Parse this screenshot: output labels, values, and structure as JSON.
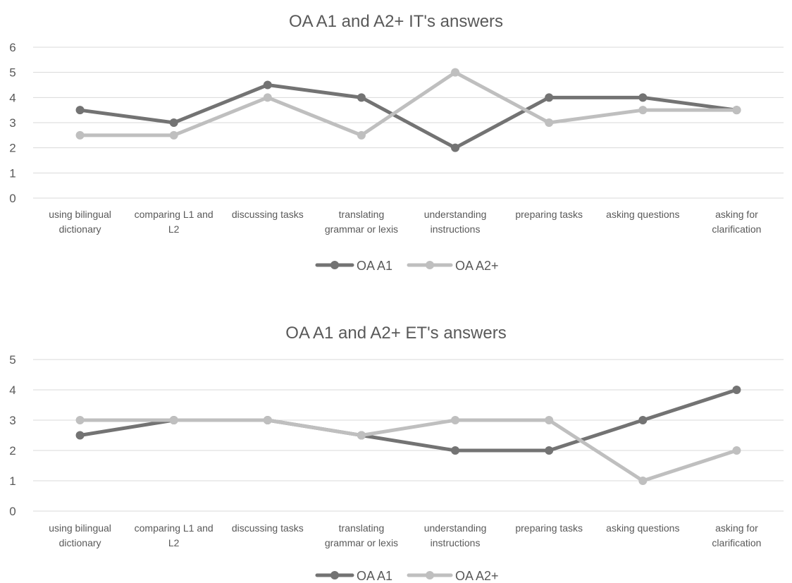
{
  "charts": [
    {
      "title": "OA A1 and A2+ IT's answers",
      "legend": [
        "OA A1",
        "OA A2+"
      ]
    },
    {
      "title": "OA A1 and A2+ ET's answers",
      "legend": [
        "OA A1",
        "OA A2+"
      ]
    }
  ],
  "chart_data": [
    {
      "type": "line",
      "title": "OA A1 and A2+ IT's answers",
      "categories": [
        [
          "using bilingual",
          "dictionary"
        ],
        [
          "comparing L1 and",
          "L2"
        ],
        [
          "discussing tasks"
        ],
        [
          "translating",
          "grammar or lexis"
        ],
        [
          "understanding",
          "instructions"
        ],
        [
          "preparing tasks"
        ],
        [
          "asking questions"
        ],
        [
          "asking for",
          "clarification"
        ]
      ],
      "series": [
        {
          "name": "OA A1",
          "color": "#737373",
          "values": [
            3.5,
            3,
            4.5,
            4,
            2,
            4,
            4,
            3.5
          ]
        },
        {
          "name": "OA A2+",
          "color": "#bfbfbf",
          "values": [
            2.5,
            2.5,
            4,
            2.5,
            5,
            3,
            3.5,
            3.5
          ]
        }
      ],
      "ylim": [
        0,
        6
      ],
      "yticks": [
        0,
        1,
        2,
        3,
        4,
        5,
        6
      ],
      "grid": true,
      "legend_position": "bottom"
    },
    {
      "type": "line",
      "title": "OA A1 and A2+ ET's answers",
      "categories": [
        [
          "using bilingual",
          "dictionary"
        ],
        [
          "comparing L1 and",
          "L2"
        ],
        [
          "discussing tasks"
        ],
        [
          "translating",
          "grammar or lexis"
        ],
        [
          "understanding",
          "instructions"
        ],
        [
          "preparing tasks"
        ],
        [
          "asking questions"
        ],
        [
          "asking for",
          "clarification"
        ]
      ],
      "series": [
        {
          "name": "OA A1",
          "color": "#737373",
          "values": [
            2.5,
            3,
            3,
            2.5,
            2,
            2,
            3,
            4
          ]
        },
        {
          "name": "OA A2+",
          "color": "#bfbfbf",
          "values": [
            3,
            3,
            3,
            2.5,
            3,
            3,
            1,
            2
          ]
        }
      ],
      "ylim": [
        0,
        5
      ],
      "yticks": [
        0,
        1,
        2,
        3,
        4,
        5
      ],
      "grid": true,
      "legend_position": "bottom"
    }
  ]
}
